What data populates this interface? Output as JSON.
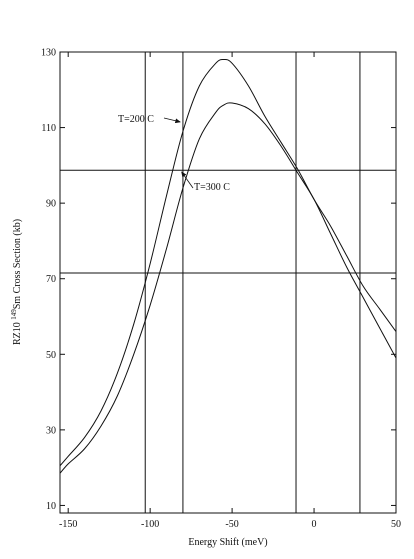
{
  "chart_data": {
    "type": "line",
    "title": "",
    "xlabel": "Energy Shift (meV)",
    "ylabel_prefix": "RZ10 ",
    "ylabel_sup": "149",
    "ylabel_suffix": "Sm Cross Section (kb)",
    "xlim": [
      -155,
      50
    ],
    "ylim": [
      8,
      130
    ],
    "xticks": [
      -150,
      -100,
      -50,
      0,
      50
    ],
    "yticks": [
      10,
      30,
      50,
      70,
      90,
      110,
      130
    ],
    "grid": false,
    "series": [
      {
        "name": "T=200 C",
        "x": [
          -155,
          -150,
          -140,
          -130,
          -120,
          -110,
          -100,
          -90,
          -80,
          -70,
          -60,
          -55,
          -50,
          -40,
          -30,
          -20,
          -10,
          0,
          10,
          20,
          30,
          40,
          50
        ],
        "y": [
          20.5,
          23,
          28,
          35,
          45,
          58,
          74,
          92,
          109,
          121,
          127,
          128,
          127,
          121,
          113,
          106,
          99,
          91,
          84,
          76,
          68,
          62,
          56
        ]
      },
      {
        "name": "T=300 C",
        "x": [
          -155,
          -150,
          -140,
          -130,
          -120,
          -110,
          -100,
          -90,
          -80,
          -70,
          -60,
          -55,
          -50,
          -40,
          -30,
          -20,
          -10,
          0,
          10,
          20,
          30,
          40,
          50
        ],
        "y": [
          18.5,
          21,
          25,
          31,
          39,
          50,
          63,
          78,
          94,
          107,
          114,
          116,
          116.5,
          115,
          111,
          105,
          98,
          91,
          82,
          73,
          65,
          57,
          49
        ]
      }
    ],
    "reference_lines": {
      "vertical": [
        -103,
        -80,
        -11,
        28
      ],
      "horizontal": [
        98.7,
        71.5
      ]
    },
    "annotations": [
      {
        "text": "T=200 C",
        "series": "T=200 C",
        "arrow_to": [
          -80.5,
          111.5
        ]
      },
      {
        "text": "T=300 C",
        "series": "T=300 C",
        "arrow_to": [
          -82,
          98.5
        ]
      }
    ]
  }
}
